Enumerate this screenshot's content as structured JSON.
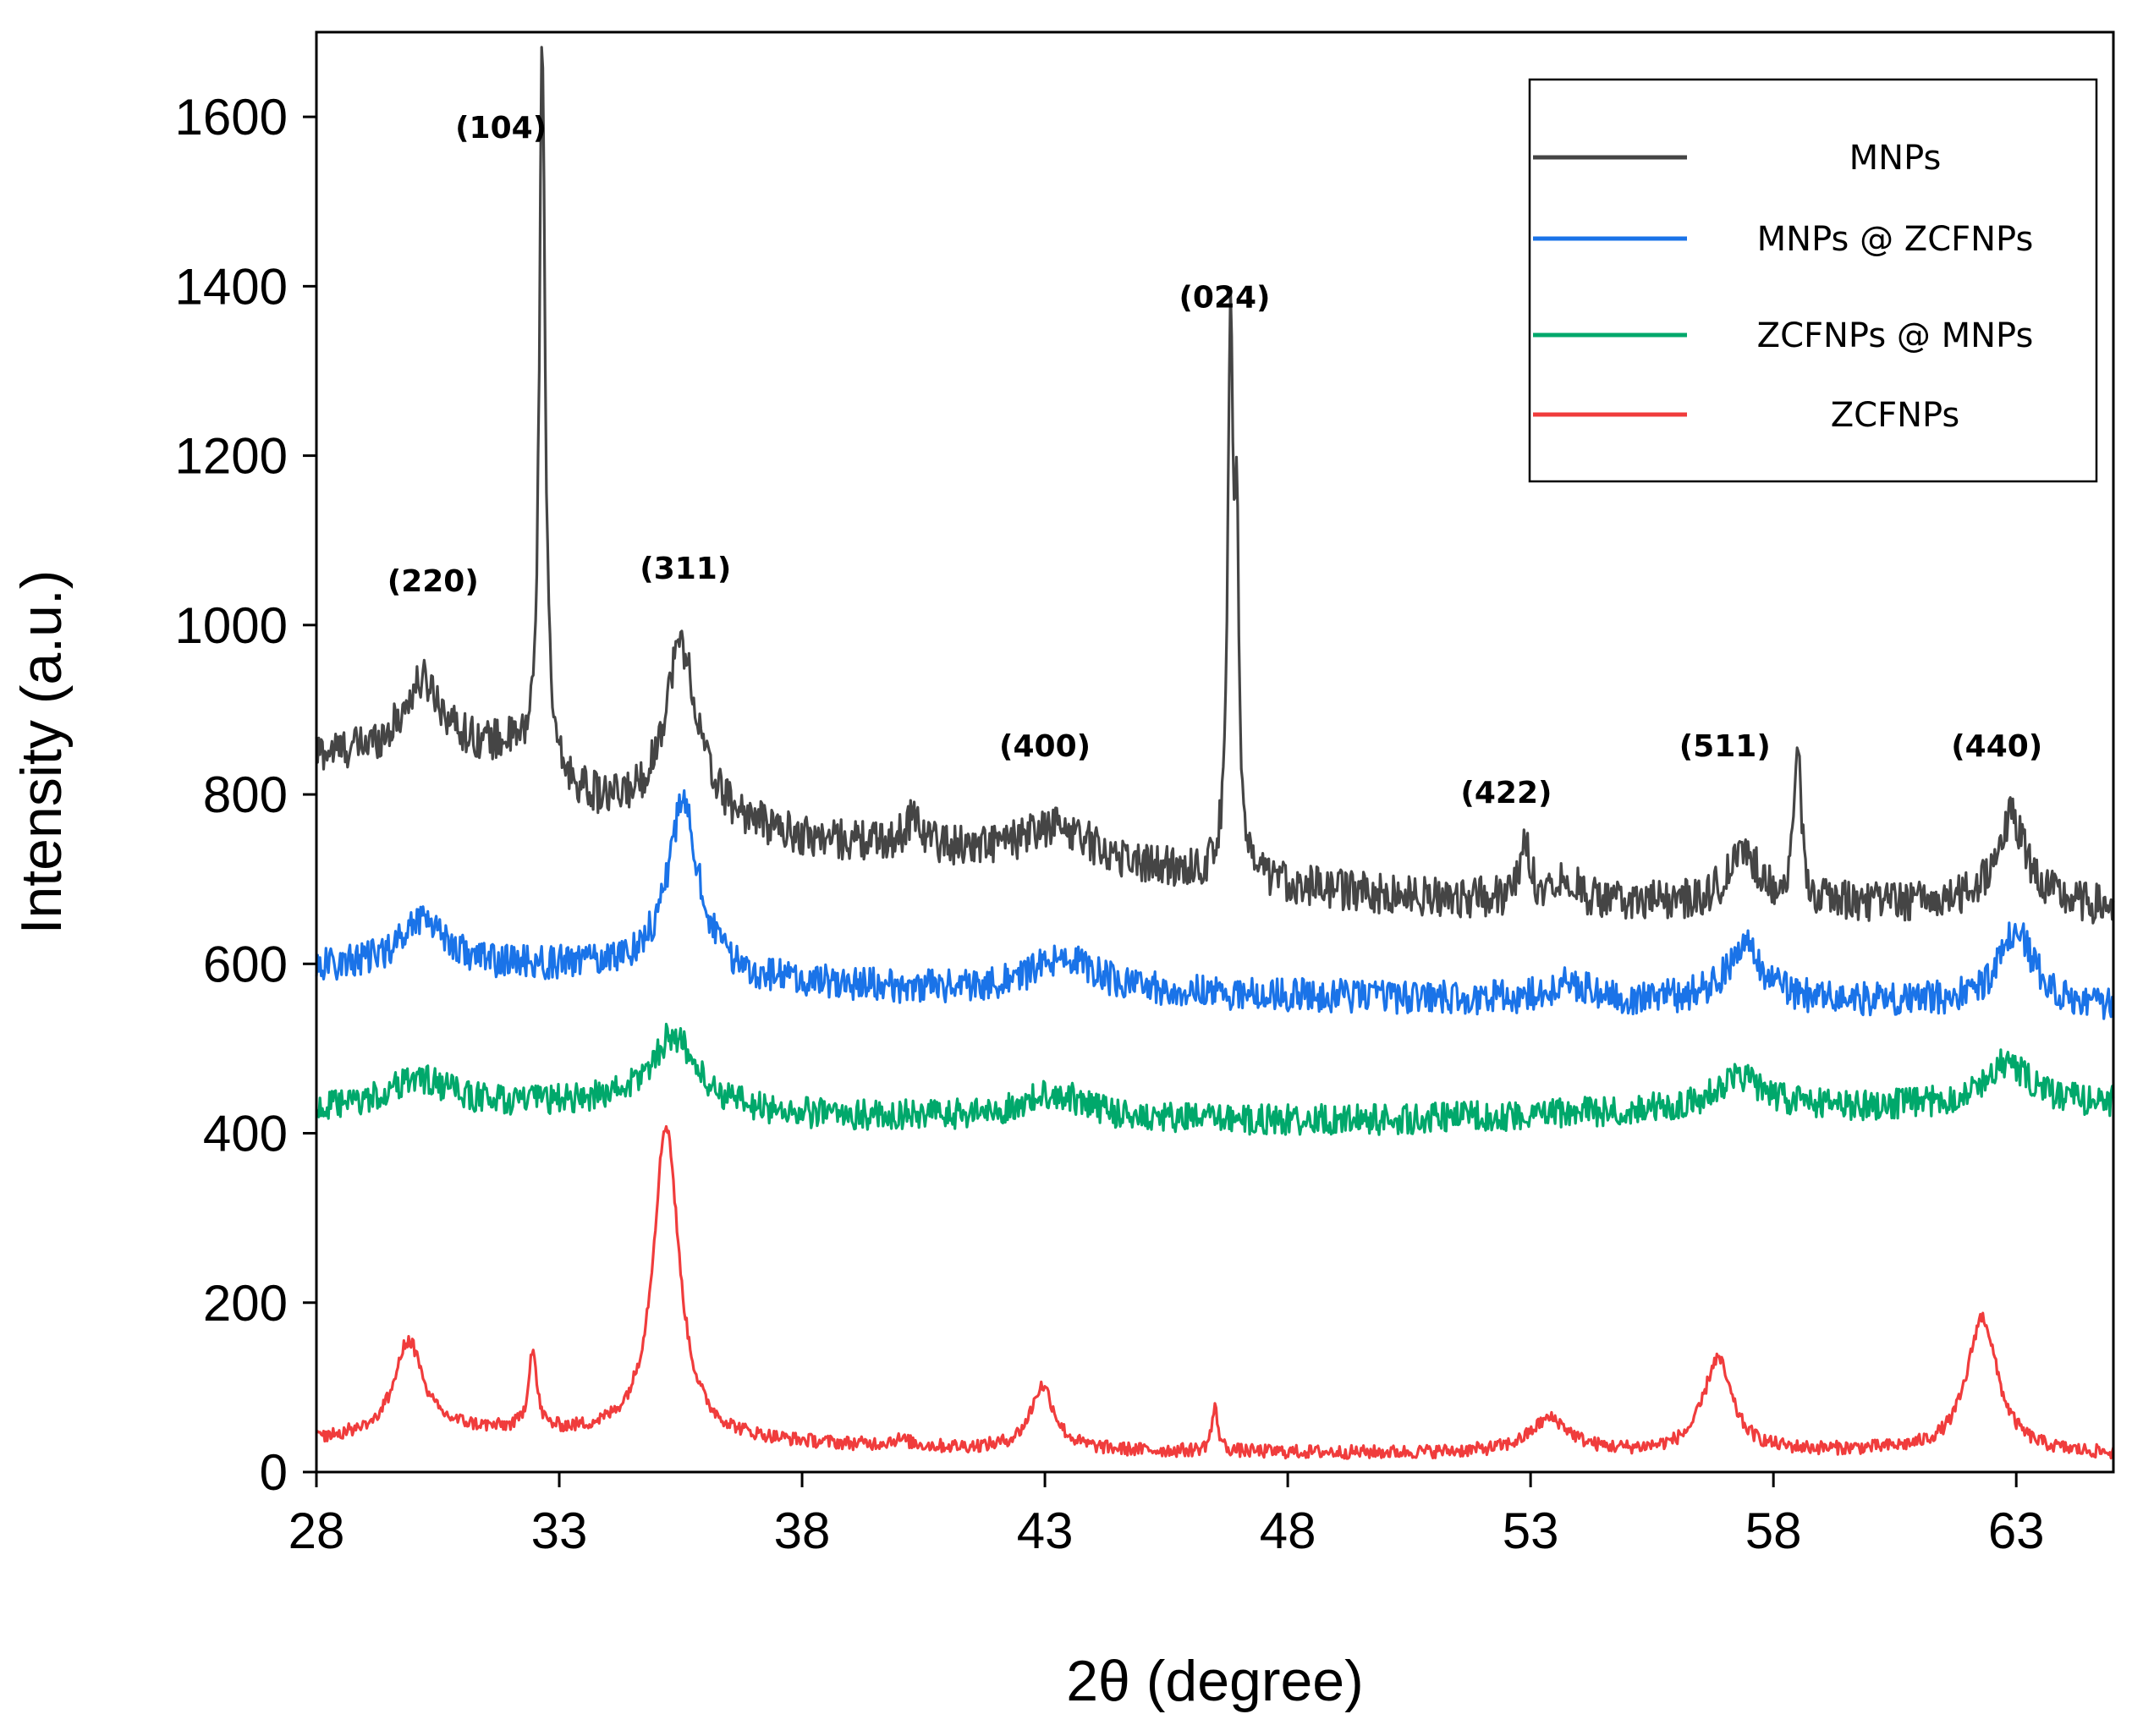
{
  "chart_data": {
    "type": "line",
    "title": "",
    "xlabel": "2θ (degree)",
    "ylabel": "Intensity (a.u.)",
    "xlim": [
      28,
      65
    ],
    "ylim": [
      0,
      1700
    ],
    "xticks": [
      28,
      33,
      38,
      43,
      48,
      53,
      58,
      63
    ],
    "yticks": [
      0,
      200,
      400,
      600,
      800,
      1000,
      1200,
      1400,
      1600
    ],
    "grid": false,
    "legend_position": "top-right",
    "series": [
      {
        "name": "MNPs",
        "color": "#454545",
        "baseline": [
          [
            28,
            845
          ],
          [
            32,
            850
          ],
          [
            33,
            810
          ],
          [
            34,
            780
          ],
          [
            36,
            770
          ],
          [
            38,
            745
          ],
          [
            42,
            730
          ],
          [
            46,
            705
          ],
          [
            50,
            680
          ],
          [
            55,
            670
          ],
          [
            60,
            670
          ],
          [
            65,
            665
          ]
        ],
        "peaks": [
          [
            30.2,
            85,
            0.5
          ],
          [
            32.65,
            870,
            0.07
          ],
          [
            35.5,
            205,
            0.4
          ],
          [
            40.3,
            35,
            0.2
          ],
          [
            43.3,
            40,
            0.8
          ],
          [
            46.82,
            640,
            0.07
          ],
          [
            46.95,
            350,
            0.05
          ],
          [
            52.9,
            65,
            0.12
          ],
          [
            53.7,
            30,
            0.3
          ],
          [
            57.4,
            60,
            0.4
          ],
          [
            58.5,
            190,
            0.08
          ],
          [
            62.9,
            105,
            0.4
          ]
        ],
        "noise": 24
      },
      {
        "name": "MNPs @ ZCFNPs",
        "color": "#1a73e8",
        "baseline": [
          [
            28,
            595
          ],
          [
            32,
            595
          ],
          [
            34,
            595
          ],
          [
            37,
            578
          ],
          [
            40,
            570
          ],
          [
            45,
            565
          ],
          [
            50,
            560
          ],
          [
            55,
            555
          ],
          [
            60,
            555
          ],
          [
            65,
            548
          ]
        ],
        "peaks": [
          [
            30.2,
            60,
            0.55
          ],
          [
            35.55,
            200,
            0.4
          ],
          [
            43.4,
            40,
            0.8
          ],
          [
            53.8,
            20,
            0.5
          ],
          [
            57.4,
            65,
            0.45
          ],
          [
            63.0,
            85,
            0.45
          ]
        ],
        "noise": 20
      },
      {
        "name": "ZCFNPs @ MNPs",
        "color": "#00a86b",
        "baseline": [
          [
            28,
            425
          ],
          [
            34,
            435
          ],
          [
            38,
            420
          ],
          [
            45,
            415
          ],
          [
            50,
            415
          ],
          [
            55,
            425
          ],
          [
            60,
            430
          ],
          [
            65,
            435
          ]
        ],
        "peaks": [
          [
            30.1,
            35,
            0.8
          ],
          [
            35.35,
            85,
            0.55
          ],
          [
            43.2,
            30,
            0.8
          ],
          [
            57.3,
            40,
            0.6
          ],
          [
            62.8,
            50,
            0.55
          ]
        ],
        "noise": 18
      },
      {
        "name": "ZCFNPs",
        "color": "#f03c3c",
        "baseline": [
          [
            28,
            38
          ],
          [
            31,
            48
          ],
          [
            34,
            42
          ],
          [
            37,
            35
          ],
          [
            40,
            28
          ],
          [
            45,
            24
          ],
          [
            50,
            22
          ],
          [
            55,
            22
          ],
          [
            60,
            24
          ],
          [
            65,
            20
          ]
        ],
        "peaks": [
          [
            29.9,
            110,
            0.35
          ],
          [
            32.45,
            95,
            0.1
          ],
          [
            35.2,
            370,
            0.32
          ],
          [
            40.0,
            8,
            0.3
          ],
          [
            42.95,
            75,
            0.3
          ],
          [
            46.5,
            50,
            0.08
          ],
          [
            53.4,
            40,
            0.5
          ],
          [
            56.85,
            110,
            0.35
          ],
          [
            62.3,
            160,
            0.38
          ]
        ],
        "noise": 8
      }
    ],
    "annotations": [
      {
        "text": "(104)",
        "x": 31.8,
        "y": 1575
      },
      {
        "text": "(220)",
        "x": 30.4,
        "y": 1040
      },
      {
        "text": "(311)",
        "x": 35.6,
        "y": 1055
      },
      {
        "text": "(024)",
        "x": 46.7,
        "y": 1375
      },
      {
        "text": "(400)",
        "x": 43.0,
        "y": 845
      },
      {
        "text": "(422)",
        "x": 52.5,
        "y": 790
      },
      {
        "text": "(511)",
        "x": 57.0,
        "y": 845
      },
      {
        "text": "(440)",
        "x": 62.6,
        "y": 845
      }
    ]
  }
}
